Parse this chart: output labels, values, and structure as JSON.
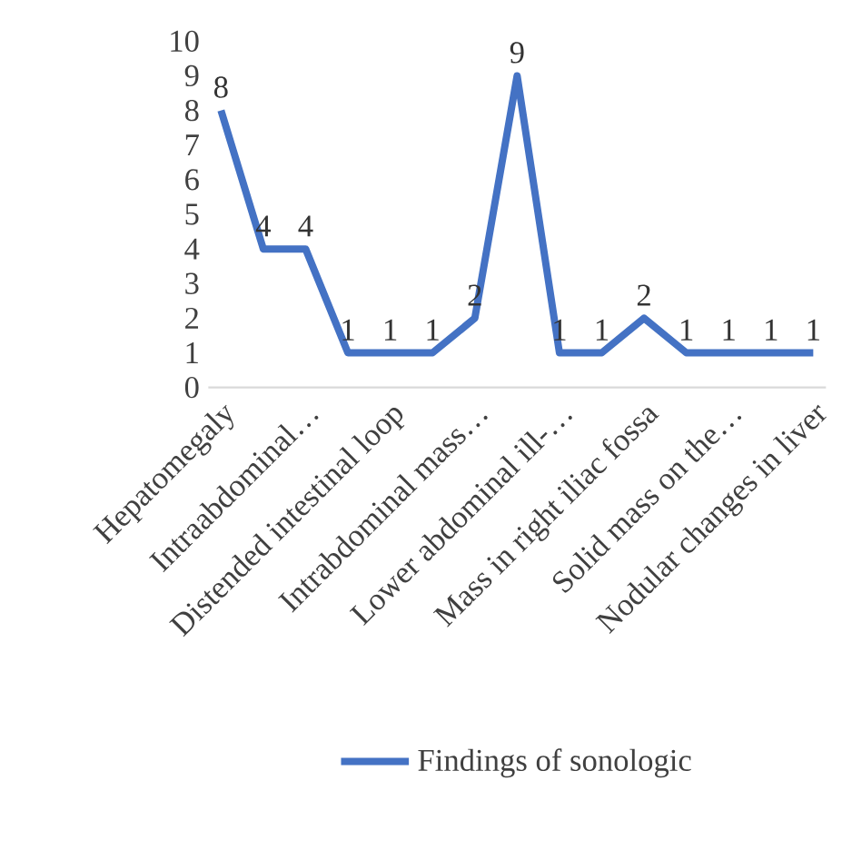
{
  "chart_data": {
    "type": "line",
    "categories": [
      "Hepatomegaly",
      null,
      "Intraabdominal…",
      null,
      "Distended intestinal loop",
      null,
      "Intrabdominal mass…",
      null,
      "Lower abdominal ill-…",
      null,
      "Mass in right iliac fossa",
      null,
      "Solid mass on the…",
      null,
      "Nodular changes in liver"
    ],
    "series": [
      {
        "name": "Findings of sonologic",
        "color": "#4472c4",
        "values": [
          8,
          4,
          4,
          1,
          1,
          1,
          2,
          9,
          1,
          1,
          2,
          1,
          1,
          1,
          1
        ]
      }
    ],
    "ylim": [
      0,
      10
    ],
    "yticks": [
      0,
      1,
      2,
      3,
      4,
      5,
      6,
      7,
      8,
      9,
      10
    ],
    "data_labels": true,
    "legend": "bottom",
    "marker": "none",
    "line_style": "solid"
  }
}
